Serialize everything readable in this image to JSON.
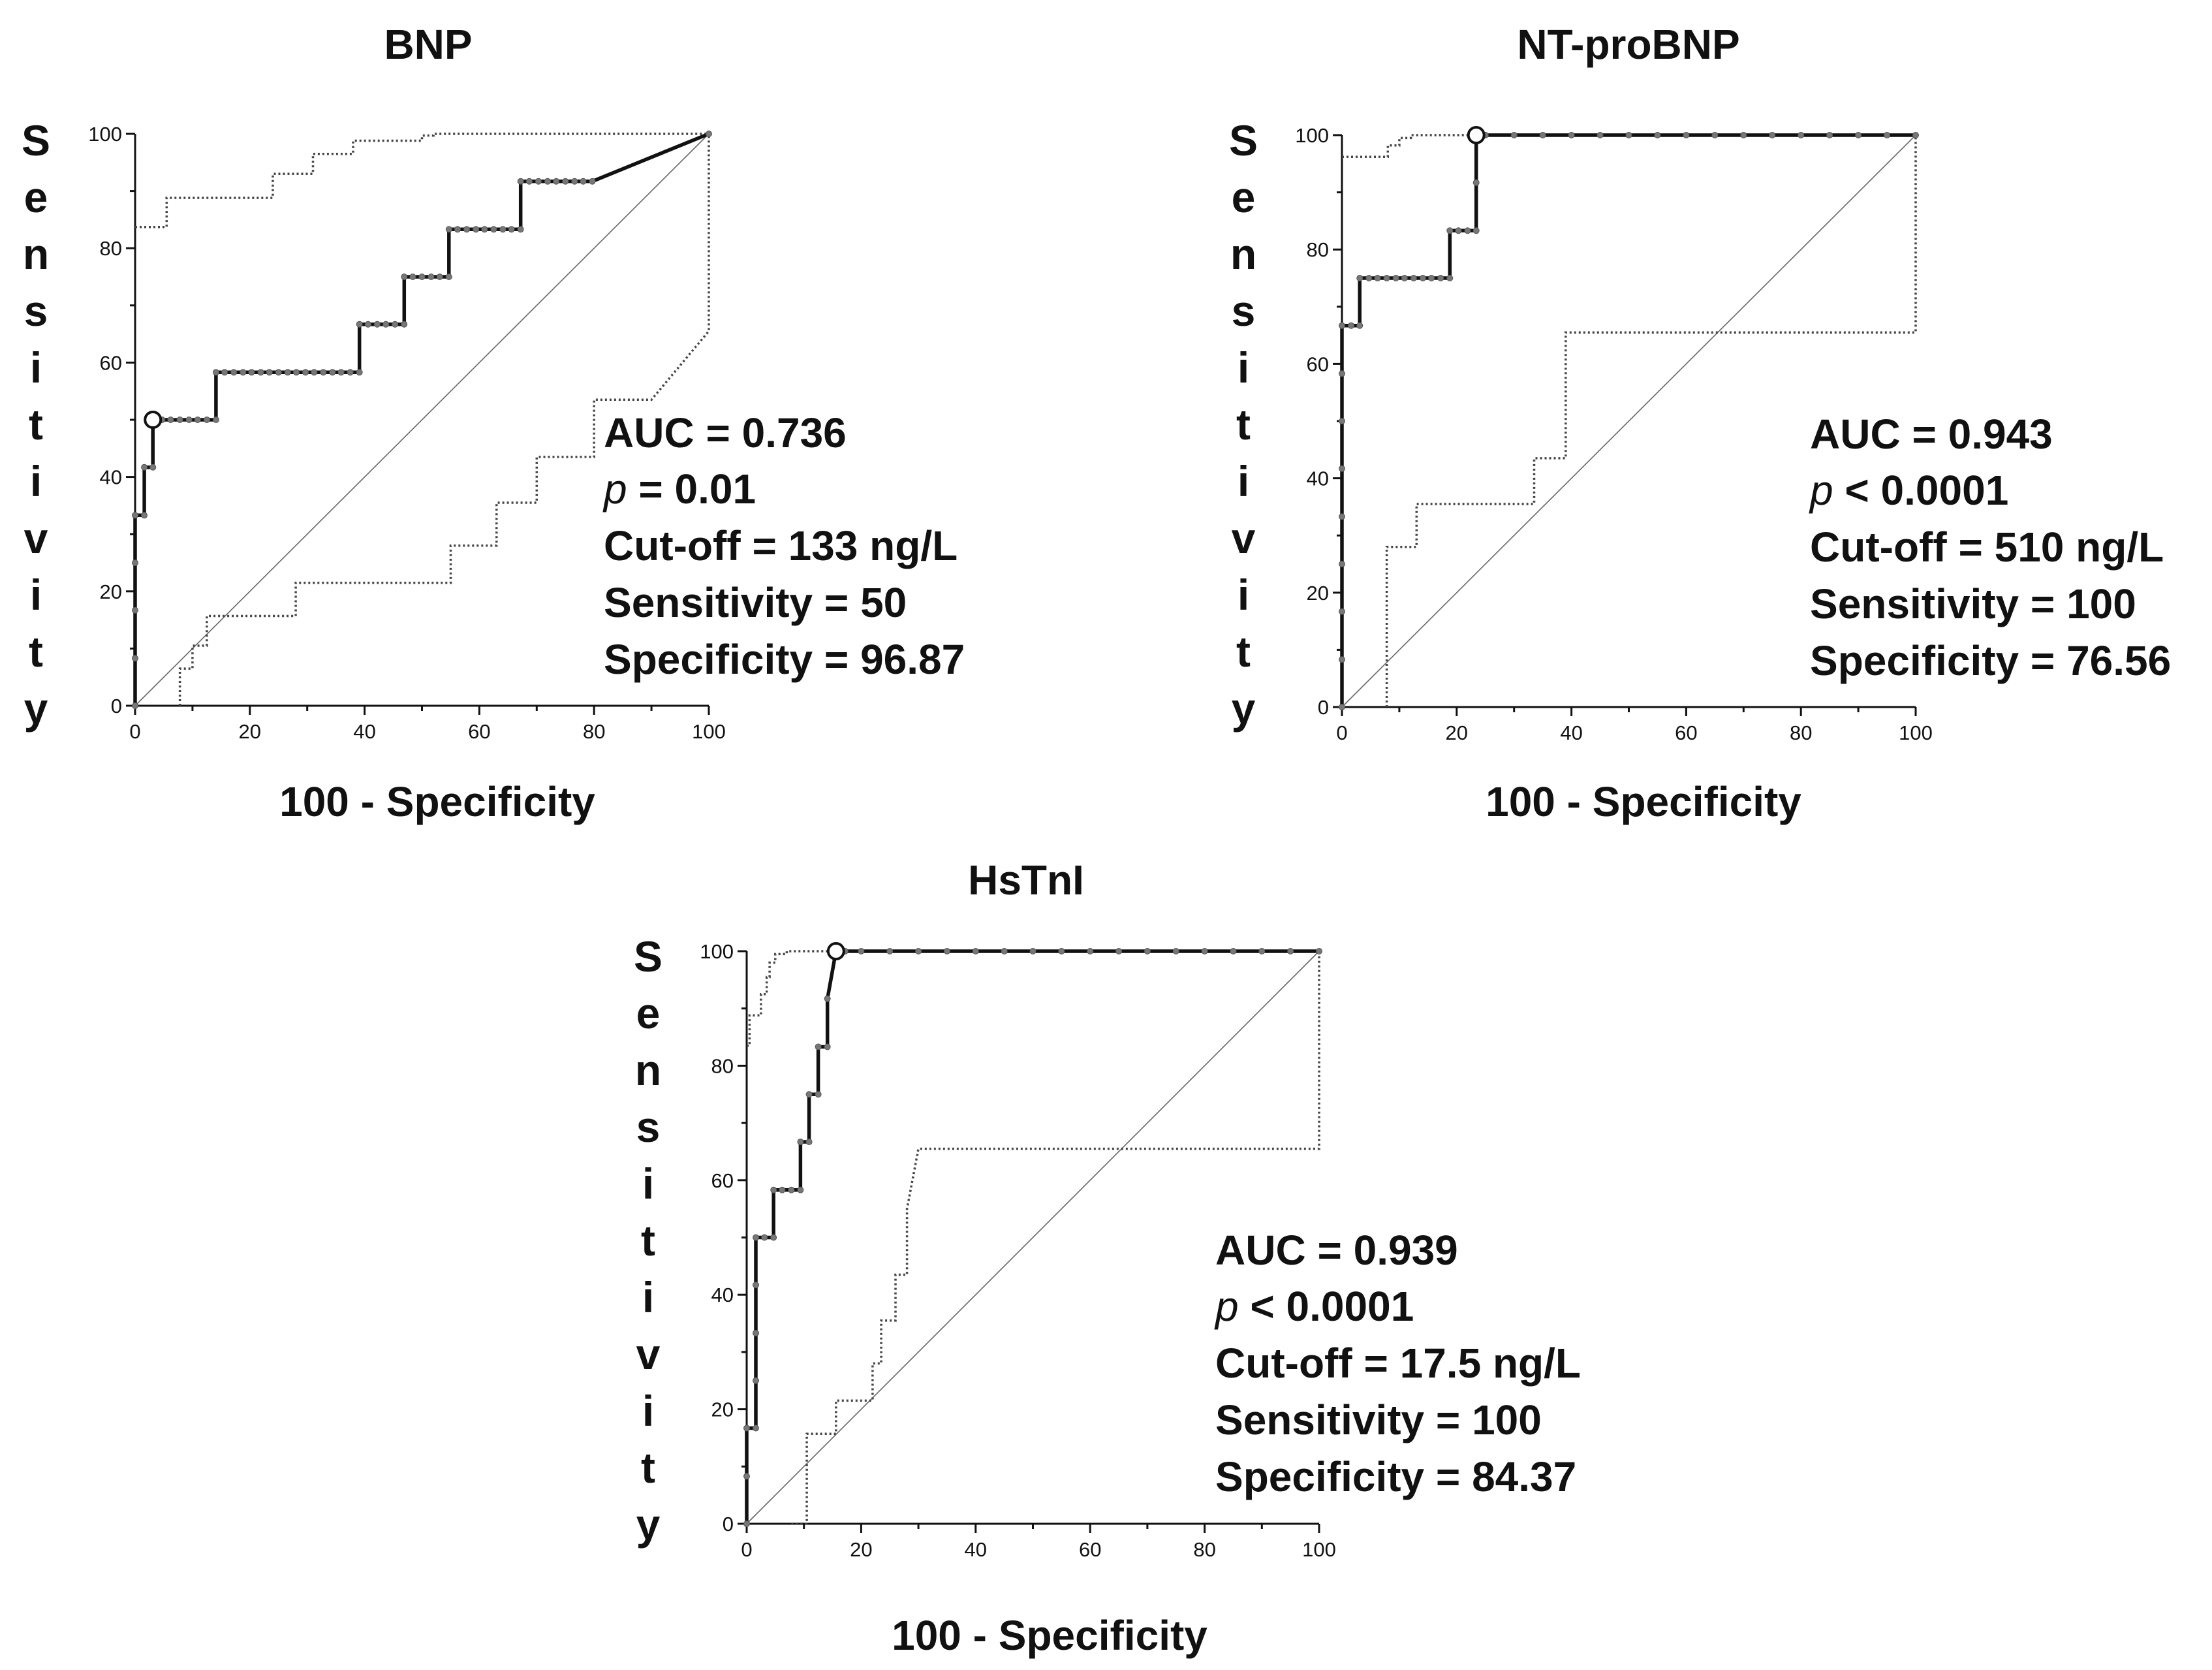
{
  "chart_data": [
    {
      "type": "line",
      "title": "BNP",
      "xlabel": "100 - Specificity",
      "ylabel": "Sensitivity",
      "xlim": [
        0,
        100
      ],
      "ylim": [
        0,
        100
      ],
      "xticks": [
        "0",
        "20",
        "40",
        "60",
        "80",
        "100"
      ],
      "yticks": [
        "0",
        "20",
        "40",
        "60",
        "80",
        "100"
      ],
      "series": [
        {
          "name": "ROC curve",
          "points": [
            [
              0,
              0
            ],
            [
              0,
              8.3
            ],
            [
              0,
              16.7
            ],
            [
              0,
              25
            ],
            [
              0,
              33.3
            ],
            [
              1.6,
              33.3
            ],
            [
              1.6,
              41.7
            ],
            [
              3.1,
              41.7
            ],
            [
              3.1,
              50
            ],
            [
              4.7,
              50
            ],
            [
              6.2,
              50
            ],
            [
              7.8,
              50
            ],
            [
              9.4,
              50
            ],
            [
              10.9,
              50
            ],
            [
              12.5,
              50
            ],
            [
              14.1,
              50
            ],
            [
              14.1,
              58.3
            ],
            [
              15.6,
              58.3
            ],
            [
              17.2,
              58.3
            ],
            [
              18.8,
              58.3
            ],
            [
              20.3,
              58.3
            ],
            [
              21.9,
              58.3
            ],
            [
              23.4,
              58.3
            ],
            [
              25,
              58.3
            ],
            [
              26.6,
              58.3
            ],
            [
              28.1,
              58.3
            ],
            [
              29.7,
              58.3
            ],
            [
              31.2,
              58.3
            ],
            [
              32.8,
              58.3
            ],
            [
              34.4,
              58.3
            ],
            [
              35.9,
              58.3
            ],
            [
              37.5,
              58.3
            ],
            [
              39.1,
              58.3
            ],
            [
              39.1,
              66.7
            ],
            [
              40.6,
              66.7
            ],
            [
              42.2,
              66.7
            ],
            [
              43.7,
              66.7
            ],
            [
              45.3,
              66.7
            ],
            [
              46.9,
              66.7
            ],
            [
              46.9,
              75
            ],
            [
              48.4,
              75
            ],
            [
              50,
              75
            ],
            [
              51.6,
              75
            ],
            [
              53.1,
              75
            ],
            [
              54.7,
              75
            ],
            [
              54.7,
              83.3
            ],
            [
              56.2,
              83.3
            ],
            [
              57.8,
              83.3
            ],
            [
              59.4,
              83.3
            ],
            [
              60.9,
              83.3
            ],
            [
              62.5,
              83.3
            ],
            [
              64.1,
              83.3
            ],
            [
              65.6,
              83.3
            ],
            [
              67.2,
              83.3
            ],
            [
              67.2,
              91.7
            ],
            [
              68.7,
              91.7
            ],
            [
              70.3,
              91.7
            ],
            [
              71.9,
              91.7
            ],
            [
              73.4,
              91.7
            ],
            [
              75,
              91.7
            ],
            [
              76.6,
              91.7
            ],
            [
              78.1,
              91.7
            ],
            [
              79.7,
              91.7
            ],
            [
              100,
              100
            ]
          ]
        },
        {
          "name": "Upper 95% CI",
          "points": [
            [
              0,
              83.7
            ],
            [
              5.5,
              83.7
            ],
            [
              5.5,
              88.8
            ],
            [
              24,
              88.8
            ],
            [
              24,
              93
            ],
            [
              31,
              93
            ],
            [
              31,
              96.5
            ],
            [
              38,
              96.5
            ],
            [
              38,
              98.8
            ],
            [
              50,
              98.8
            ],
            [
              50,
              99.7
            ],
            [
              52,
              99.7
            ],
            [
              52,
              100
            ],
            [
              100,
              100
            ]
          ]
        },
        {
          "name": "Lower 95% CI",
          "points": [
            [
              7.8,
              0
            ],
            [
              7.8,
              6.5
            ],
            [
              10,
              6.5
            ],
            [
              10,
              10.5
            ],
            [
              12.5,
              10.5
            ],
            [
              12.5,
              15.7
            ],
            [
              28,
              15.7
            ],
            [
              28,
              21.5
            ],
            [
              55,
              21.5
            ],
            [
              55,
              28
            ],
            [
              63,
              28
            ],
            [
              63,
              35.5
            ],
            [
              70,
              35.5
            ],
            [
              70,
              43.5
            ],
            [
              80,
              43.5
            ],
            [
              80,
              53.5
            ],
            [
              90,
              53.5
            ],
            [
              100,
              65.5
            ],
            [
              100,
              100
            ]
          ]
        },
        {
          "name": "Reference line",
          "points": [
            [
              0,
              0
            ],
            [
              100,
              100
            ]
          ]
        }
      ],
      "cutoff_point": [
        3.1,
        50
      ],
      "annotations": {
        "auc": "AUC = 0.736",
        "p_symbol": "p",
        "p_value": " = 0.01",
        "cutoff": "Cut-off = 133 ng/L",
        "sensitivity": "Sensitivity = 50",
        "specificity": "Specificity = 96.87"
      }
    },
    {
      "type": "line",
      "title": "NT-proBNP",
      "xlabel": "100 - Specificity",
      "ylabel": "Sensitivity",
      "xlim": [
        0,
        100
      ],
      "ylim": [
        0,
        100
      ],
      "xticks": [
        "0",
        "20",
        "40",
        "60",
        "80",
        "100"
      ],
      "yticks": [
        "0",
        "20",
        "40",
        "60",
        "80",
        "100"
      ],
      "series": [
        {
          "name": "ROC curve",
          "points": [
            [
              0,
              0
            ],
            [
              0,
              8.3
            ],
            [
              0,
              16.7
            ],
            [
              0,
              25
            ],
            [
              0,
              33.3
            ],
            [
              0,
              41.7
            ],
            [
              0,
              50
            ],
            [
              0,
              58.3
            ],
            [
              0,
              66.7
            ],
            [
              1.6,
              66.7
            ],
            [
              3.1,
              66.7
            ],
            [
              3.1,
              75
            ],
            [
              4.7,
              75
            ],
            [
              6.2,
              75
            ],
            [
              7.8,
              75
            ],
            [
              9.4,
              75
            ],
            [
              10.9,
              75
            ],
            [
              12.5,
              75
            ],
            [
              14.1,
              75
            ],
            [
              15.6,
              75
            ],
            [
              17.2,
              75
            ],
            [
              18.8,
              75
            ],
            [
              18.8,
              83.3
            ],
            [
              20.3,
              83.3
            ],
            [
              21.9,
              83.3
            ],
            [
              23.4,
              83.3
            ],
            [
              23.4,
              91.7
            ],
            [
              23.4,
              100
            ],
            [
              25,
              100
            ],
            [
              30,
              100
            ],
            [
              35,
              100
            ],
            [
              40,
              100
            ],
            [
              45,
              100
            ],
            [
              50,
              100
            ],
            [
              55,
              100
            ],
            [
              60,
              100
            ],
            [
              65,
              100
            ],
            [
              70,
              100
            ],
            [
              75,
              100
            ],
            [
              80,
              100
            ],
            [
              85,
              100
            ],
            [
              90,
              100
            ],
            [
              95,
              100
            ],
            [
              100,
              100
            ]
          ]
        },
        {
          "name": "Upper 95% CI",
          "points": [
            [
              0,
              96.2
            ],
            [
              8,
              96.2
            ],
            [
              8,
              98.2
            ],
            [
              10,
              98.2
            ],
            [
              10,
              99.5
            ],
            [
              12,
              99.5
            ],
            [
              12,
              100
            ],
            [
              100,
              100
            ]
          ]
        },
        {
          "name": "Lower 95% CI",
          "points": [
            [
              7.8,
              0
            ],
            [
              7.8,
              28
            ],
            [
              13,
              28
            ],
            [
              13,
              35.5
            ],
            [
              33.5,
              35.5
            ],
            [
              33.5,
              43.5
            ],
            [
              39,
              43.5
            ],
            [
              39,
              65.5
            ],
            [
              100,
              65.5
            ],
            [
              100,
              100
            ]
          ]
        },
        {
          "name": "Reference line",
          "points": [
            [
              0,
              0
            ],
            [
              100,
              100
            ]
          ]
        }
      ],
      "cutoff_point": [
        23.4,
        100
      ],
      "annotations": {
        "auc": "AUC = 0.943",
        "p_symbol": "p",
        "p_value": " < 0.0001",
        "cutoff": "Cut-off = 510 ng/L",
        "sensitivity": "Sensitivity = 100",
        "specificity": "Specificity = 76.56"
      }
    },
    {
      "type": "line",
      "title": "HsTnI",
      "xlabel": "100 - Specificity",
      "ylabel": "Sensitivity",
      "xlim": [
        0,
        100
      ],
      "ylim": [
        0,
        100
      ],
      "xticks": [
        "0",
        "20",
        "40",
        "60",
        "80",
        "100"
      ],
      "yticks": [
        "0",
        "20",
        "40",
        "60",
        "80",
        "100"
      ],
      "series": [
        {
          "name": "ROC curve",
          "points": [
            [
              0,
              0
            ],
            [
              0,
              8.3
            ],
            [
              0,
              16.7
            ],
            [
              1.6,
              16.7
            ],
            [
              1.6,
              25
            ],
            [
              1.6,
              33.3
            ],
            [
              1.6,
              41.7
            ],
            [
              1.6,
              50
            ],
            [
              3.1,
              50
            ],
            [
              4.7,
              50
            ],
            [
              4.7,
              58.3
            ],
            [
              6.2,
              58.3
            ],
            [
              7.8,
              58.3
            ],
            [
              9.4,
              58.3
            ],
            [
              9.4,
              66.7
            ],
            [
              10.9,
              66.7
            ],
            [
              10.9,
              75
            ],
            [
              12.5,
              75
            ],
            [
              12.5,
              83.3
            ],
            [
              14.1,
              83.3
            ],
            [
              14.1,
              91.7
            ],
            [
              15.6,
              100
            ],
            [
              17.2,
              100
            ],
            [
              20,
              100
            ],
            [
              25,
              100
            ],
            [
              30,
              100
            ],
            [
              35,
              100
            ],
            [
              40,
              100
            ],
            [
              45,
              100
            ],
            [
              50,
              100
            ],
            [
              55,
              100
            ],
            [
              60,
              100
            ],
            [
              65,
              100
            ],
            [
              70,
              100
            ],
            [
              75,
              100
            ],
            [
              80,
              100
            ],
            [
              85,
              100
            ],
            [
              90,
              100
            ],
            [
              95,
              100
            ],
            [
              100,
              100
            ]
          ]
        },
        {
          "name": "Upper 95% CI",
          "points": [
            [
              0,
              83.5
            ],
            [
              0.5,
              83.5
            ],
            [
              0.5,
              88.8
            ],
            [
              2.5,
              88.8
            ],
            [
              2.5,
              92.5
            ],
            [
              3.5,
              92.5
            ],
            [
              3.5,
              95.5
            ],
            [
              4,
              95.5
            ],
            [
              4,
              98
            ],
            [
              5,
              98
            ],
            [
              5,
              99.5
            ],
            [
              7,
              99.5
            ],
            [
              7,
              100
            ],
            [
              100,
              100
            ]
          ]
        },
        {
          "name": "Lower 95% CI",
          "points": [
            [
              7.8,
              0
            ],
            [
              10.5,
              0
            ],
            [
              10.5,
              15.7
            ],
            [
              15.6,
              15.7
            ],
            [
              15.6,
              21.5
            ],
            [
              22,
              21.5
            ],
            [
              22,
              28
            ],
            [
              23.5,
              28
            ],
            [
              23.5,
              35.5
            ],
            [
              26,
              35.5
            ],
            [
              26,
              43.5
            ],
            [
              28,
              43.5
            ],
            [
              28,
              55
            ],
            [
              30,
              65.5
            ],
            [
              100,
              65.5
            ],
            [
              100,
              100
            ]
          ]
        },
        {
          "name": "Reference line",
          "points": [
            [
              0,
              0
            ],
            [
              100,
              100
            ]
          ]
        }
      ],
      "cutoff_point": [
        15.6,
        100
      ],
      "annotations": {
        "auc": "AUC = 0.939",
        "p_symbol": "p",
        "p_value": " < 0.0001",
        "cutoff": "Cut-off = 17.5 ng/L",
        "sensitivity": "Sensitivity = 100",
        "specificity": "Specificity = 84.37"
      }
    }
  ]
}
